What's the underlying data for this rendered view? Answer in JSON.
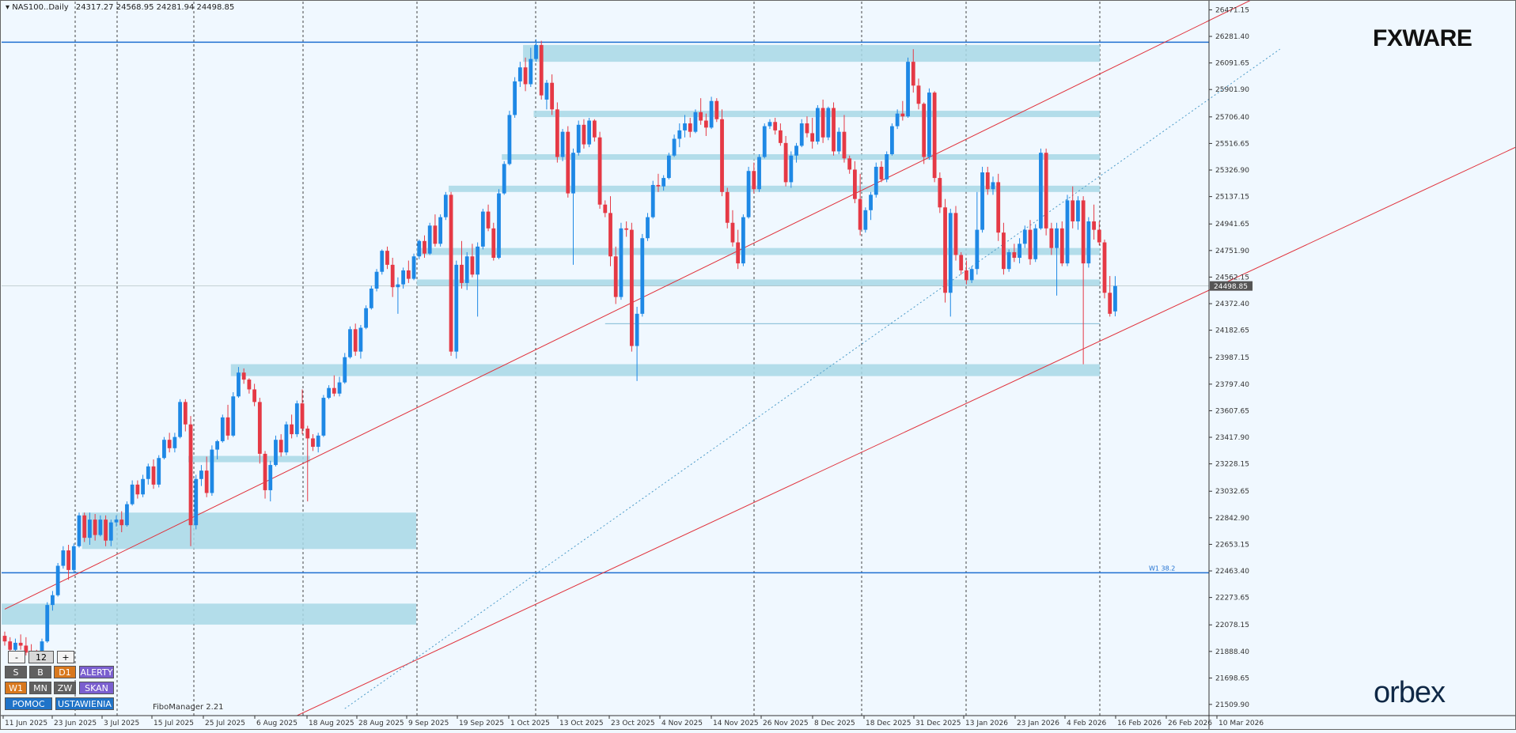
{
  "chart_data": {
    "type": "candlestick",
    "symbol": "NAS100..Daily",
    "ohlc_header": "24317.27 24568.95 24281.94 24498.85",
    "last_price": "24498.85",
    "ylim": [
      21430,
      26530
    ],
    "y_ticks": [
      "26471.15",
      "26281.40",
      "26091.65",
      "25901.90",
      "25706.40",
      "25516.65",
      "25326.90",
      "25137.15",
      "24941.65",
      "24751.90",
      "24562.15",
      "24372.40",
      "24182.65",
      "23987.15",
      "23797.40",
      "23607.65",
      "23417.90",
      "23228.15",
      "23032.65",
      "22842.90",
      "22653.15",
      "22463.40",
      "22273.65",
      "22078.15",
      "21888.40",
      "21698.65",
      "21509.90"
    ],
    "x_labels": [
      "11 Jun 2025",
      "23 Jun 2025",
      "3 Jul 2025",
      "15 Jul 2025",
      "25 Jul 2025",
      "6 Aug 2025",
      "18 Aug 2025",
      "28 Aug 2025",
      "9 Sep 2025",
      "19 Sep 2025",
      "1 Oct 2025",
      "13 Oct 2025",
      "23 Oct 2025",
      "4 Nov 2025",
      "14 Nov 2025",
      "26 Nov 2025",
      "8 Dec 2025",
      "18 Dec 2025",
      "31 Dec 2025",
      "13 Jan 2026",
      "23 Jan 2026",
      "4 Feb 2026",
      "16 Feb 2026",
      "26 Feb 2026",
      "10 Mar 2026"
    ],
    "level_label": "W1 38.2",
    "horizontal_lines": [
      26240,
      22450
    ],
    "supply_demand_zones": [
      {
        "x_start": "26 Oct 2025",
        "x_end": "end",
        "y_low": 26100,
        "y_high": 26220
      },
      {
        "x_start": "28 Oct 2025",
        "x_end": "end",
        "y_low": 25705,
        "y_high": 25750
      },
      {
        "x_start": "23 Oct 2025",
        "x_end": "end",
        "y_low": 25400,
        "y_high": 25440
      },
      {
        "x_start": "6 Oct 2025",
        "x_end": "end",
        "y_low": 25170,
        "y_high": 25215
      },
      {
        "x_start": "24 Sep 2025",
        "x_end": "end",
        "y_low": 24720,
        "y_high": 24770
      },
      {
        "x_start": "24 Sep 2025",
        "x_end": "end",
        "y_low": 24500,
        "y_high": 24545
      },
      {
        "x_start": "6 Aug 2025",
        "x_end": "end",
        "y_low": 23855,
        "y_high": 23940
      },
      {
        "x_start": "26 Jul 2025",
        "x_end": "1 Sep 2025",
        "y_low": 23240,
        "y_high": 23285
      },
      {
        "x_start": "30 Jun 2025",
        "x_end": "29 Sep 2025",
        "y_low": 22620,
        "y_high": 22880
      },
      {
        "x_start": "11 Jun 2025",
        "x_end": "29 Sep 2025",
        "y_low": 22080,
        "y_high": 22230
      }
    ],
    "trend_channel": {
      "upper": [
        {
          "x": 0,
          "y": 22190
        },
        {
          "x": 255,
          "y": 26920
        }
      ],
      "lower": [
        {
          "x": 55,
          "y": 21430
        },
        {
          "x": 355,
          "y": 26740
        }
      ],
      "dotted": [
        {
          "x": 64,
          "y": 21480
        },
        {
          "x": 240,
          "y": 26190
        }
      ]
    },
    "candles": [
      [
        22000,
        22030,
        21930,
        21960
      ],
      [
        21960,
        21990,
        21880,
        21900
      ],
      [
        21900,
        21980,
        21860,
        21950
      ],
      [
        21950,
        22010,
        21900,
        21930
      ],
      [
        21930,
        21990,
        21860,
        21880
      ],
      [
        21880,
        21940,
        21840,
        21860
      ],
      [
        21860,
        21900,
        21810,
        21830
      ],
      [
        21830,
        21980,
        21820,
        21960
      ],
      [
        21960,
        22240,
        21950,
        22220
      ],
      [
        22220,
        22320,
        22180,
        22290
      ],
      [
        22290,
        22520,
        22280,
        22500
      ],
      [
        22500,
        22640,
        22480,
        22610
      ],
      [
        22610,
        22650,
        22400,
        22470
      ],
      [
        22470,
        22660,
        22450,
        22640
      ],
      [
        22640,
        22880,
        22630,
        22860
      ],
      [
        22860,
        22880,
        22670,
        22700
      ],
      [
        22700,
        22880,
        22650,
        22830
      ],
      [
        22830,
        22870,
        22680,
        22720
      ],
      [
        22720,
        22860,
        22710,
        22830
      ],
      [
        22830,
        22860,
        22640,
        22680
      ],
      [
        22680,
        22830,
        22640,
        22810
      ],
      [
        22810,
        22860,
        22780,
        22830
      ],
      [
        22830,
        22890,
        22740,
        22790
      ],
      [
        22790,
        22960,
        22780,
        22940
      ],
      [
        22940,
        23110,
        22930,
        23080
      ],
      [
        23080,
        23110,
        22980,
        23010
      ],
      [
        23010,
        23150,
        22990,
        23120
      ],
      [
        23120,
        23230,
        23080,
        23210
      ],
      [
        23210,
        23260,
        23050,
        23080
      ],
      [
        23080,
        23290,
        23060,
        23270
      ],
      [
        23270,
        23420,
        23260,
        23400
      ],
      [
        23400,
        23450,
        23310,
        23340
      ],
      [
        23340,
        23450,
        23310,
        23420
      ],
      [
        23420,
        23690,
        23410,
        23670
      ],
      [
        23670,
        23690,
        23460,
        23510
      ],
      [
        23510,
        23570,
        22640,
        22790
      ],
      [
        22790,
        23150,
        22760,
        23120
      ],
      [
        23120,
        23220,
        23070,
        23180
      ],
      [
        23180,
        23280,
        22990,
        23020
      ],
      [
        23020,
        23360,
        23000,
        23330
      ],
      [
        23330,
        23400,
        23260,
        23390
      ],
      [
        23390,
        23580,
        23380,
        23560
      ],
      [
        23560,
        23650,
        23400,
        23430
      ],
      [
        23430,
        23740,
        23420,
        23710
      ],
      [
        23710,
        23920,
        23700,
        23880
      ],
      [
        23880,
        23910,
        23800,
        23830
      ],
      [
        23830,
        23840,
        23730,
        23760
      ],
      [
        23760,
        23800,
        23640,
        23670
      ],
      [
        23670,
        23700,
        23230,
        23300
      ],
      [
        23300,
        23320,
        22980,
        23040
      ],
      [
        23040,
        23250,
        22960,
        23220
      ],
      [
        23220,
        23430,
        23210,
        23400
      ],
      [
        23400,
        23440,
        23280,
        23310
      ],
      [
        23310,
        23530,
        23290,
        23510
      ],
      [
        23510,
        23580,
        23410,
        23440
      ],
      [
        23440,
        23680,
        23420,
        23660
      ],
      [
        23660,
        23760,
        23440,
        23480
      ],
      [
        23480,
        23500,
        22960,
        23410
      ],
      [
        23410,
        23440,
        23320,
        23350
      ],
      [
        23350,
        23450,
        23310,
        23430
      ],
      [
        23430,
        23720,
        23420,
        23700
      ],
      [
        23700,
        23790,
        23690,
        23770
      ],
      [
        23770,
        23860,
        23710,
        23730
      ],
      [
        23730,
        23850,
        23710,
        23810
      ],
      [
        23810,
        24020,
        23800,
        23990
      ],
      [
        23990,
        24210,
        23980,
        24190
      ],
      [
        24190,
        24230,
        24000,
        24030
      ],
      [
        24030,
        24220,
        23980,
        24200
      ],
      [
        24200,
        24360,
        24190,
        24340
      ],
      [
        24340,
        24500,
        24330,
        24480
      ],
      [
        24480,
        24620,
        24460,
        24600
      ],
      [
        24600,
        24760,
        24580,
        24750
      ],
      [
        24750,
        24780,
        24620,
        24650
      ],
      [
        24650,
        24700,
        24420,
        24490
      ],
      [
        24490,
        24560,
        24300,
        24510
      ],
      [
        24510,
        24630,
        24480,
        24610
      ],
      [
        24610,
        24680,
        24520,
        24550
      ],
      [
        24550,
        24730,
        24540,
        24710
      ],
      [
        24710,
        24830,
        24690,
        24820
      ],
      [
        24820,
        24860,
        24700,
        24730
      ],
      [
        24730,
        24950,
        24720,
        24930
      ],
      [
        24930,
        25010,
        24780,
        24800
      ],
      [
        24800,
        25010,
        24780,
        24990
      ],
      [
        24990,
        25170,
        24970,
        25150
      ],
      [
        25150,
        25170,
        24000,
        24030
      ],
      [
        24030,
        24680,
        23980,
        24650
      ],
      [
        24650,
        24820,
        24480,
        24520
      ],
      [
        24520,
        24740,
        24470,
        24710
      ],
      [
        24710,
        24800,
        24560,
        24580
      ],
      [
        24580,
        24810,
        24280,
        24780
      ],
      [
        24780,
        25050,
        24760,
        25030
      ],
      [
        25030,
        25080,
        24890,
        24910
      ],
      [
        24910,
        24950,
        24680,
        24700
      ],
      [
        24700,
        25190,
        24690,
        25160
      ],
      [
        25160,
        25390,
        25150,
        25370
      ],
      [
        25370,
        25750,
        25360,
        25720
      ],
      [
        25720,
        25990,
        25700,
        25960
      ],
      [
        25960,
        26100,
        25920,
        26060
      ],
      [
        26060,
        26130,
        25890,
        25940
      ],
      [
        25940,
        26200,
        25920,
        26120
      ],
      [
        26120,
        26260,
        26100,
        26220
      ],
      [
        26220,
        26250,
        25830,
        25860
      ],
      [
        25830,
        25970,
        25760,
        25950
      ],
      [
        25950,
        26010,
        25720,
        25760
      ],
      [
        25760,
        25810,
        25380,
        25420
      ],
      [
        25420,
        25620,
        25390,
        25600
      ],
      [
        25600,
        25640,
        25130,
        25160
      ],
      [
        25160,
        25480,
        24650,
        25450
      ],
      [
        25450,
        25680,
        25430,
        25650
      ],
      [
        25650,
        25690,
        25480,
        25510
      ],
      [
        25510,
        25700,
        25490,
        25680
      ],
      [
        25680,
        25690,
        25530,
        25560
      ],
      [
        25560,
        25600,
        25050,
        25080
      ],
      [
        25080,
        25110,
        24990,
        25020
      ],
      [
        25020,
        25140,
        24640,
        24710
      ],
      [
        24710,
        24780,
        24370,
        24420
      ],
      [
        24420,
        24950,
        24400,
        24910
      ],
      [
        24910,
        24960,
        24850,
        24900
      ],
      [
        24900,
        24950,
        24030,
        24070
      ],
      [
        24070,
        24350,
        23820,
        24300
      ],
      [
        24300,
        24870,
        24280,
        24840
      ],
      [
        24840,
        25020,
        24820,
        24990
      ],
      [
        24990,
        25250,
        24980,
        25220
      ],
      [
        25220,
        25300,
        25170,
        25210
      ],
      [
        25210,
        25290,
        25180,
        25270
      ],
      [
        25270,
        25450,
        25260,
        25430
      ],
      [
        25430,
        25580,
        25420,
        25550
      ],
      [
        25550,
        25660,
        25490,
        25610
      ],
      [
        25610,
        25720,
        25560,
        25660
      ],
      [
        25660,
        25700,
        25560,
        25600
      ],
      [
        25600,
        25760,
        25590,
        25740
      ],
      [
        25740,
        25840,
        25650,
        25680
      ],
      [
        25680,
        25730,
        25570,
        25630
      ],
      [
        25630,
        25850,
        25620,
        25820
      ],
      [
        25820,
        25840,
        25670,
        25690
      ],
      [
        25690,
        25760,
        25140,
        25170
      ],
      [
        25170,
        25200,
        24910,
        24950
      ],
      [
        24950,
        25040,
        24780,
        24810
      ],
      [
        24810,
        24900,
        24620,
        24660
      ],
      [
        24660,
        25010,
        24640,
        24990
      ],
      [
        24990,
        25350,
        24980,
        25320
      ],
      [
        25320,
        25380,
        25160,
        25190
      ],
      [
        25190,
        25440,
        25170,
        25420
      ],
      [
        25420,
        25660,
        25410,
        25640
      ],
      [
        25640,
        25690,
        25620,
        25670
      ],
      [
        25670,
        25700,
        25580,
        25610
      ],
      [
        25610,
        25660,
        25500,
        25520
      ],
      [
        25520,
        25570,
        25210,
        25240
      ],
      [
        25240,
        25460,
        25200,
        25430
      ],
      [
        25430,
        25520,
        25380,
        25500
      ],
      [
        25500,
        25690,
        25490,
        25660
      ],
      [
        25660,
        25710,
        25560,
        25590
      ],
      [
        25590,
        25700,
        25480,
        25530
      ],
      [
        25530,
        25790,
        25510,
        25770
      ],
      [
        25770,
        25830,
        25520,
        25560
      ],
      [
        25560,
        25780,
        25540,
        25770
      ],
      [
        25770,
        25810,
        25430,
        25460
      ],
      [
        25460,
        25630,
        25440,
        25600
      ],
      [
        25600,
        25720,
        25380,
        25410
      ],
      [
        25410,
        25430,
        25300,
        25330
      ],
      [
        25330,
        25390,
        25090,
        25120
      ],
      [
        25120,
        25300,
        24860,
        24900
      ],
      [
        24900,
        25060,
        24880,
        25040
      ],
      [
        25040,
        25170,
        24970,
        25150
      ],
      [
        25150,
        25380,
        25130,
        25350
      ],
      [
        25350,
        25390,
        25240,
        25260
      ],
      [
        25260,
        25460,
        25240,
        25440
      ],
      [
        25440,
        25660,
        25430,
        25640
      ],
      [
        25640,
        25760,
        25620,
        25730
      ],
      [
        25730,
        25820,
        25680,
        25710
      ],
      [
        25710,
        26130,
        25700,
        26100
      ],
      [
        26100,
        26190,
        25880,
        25930
      ],
      [
        25930,
        25980,
        25760,
        25800
      ],
      [
        25800,
        25810,
        25370,
        25420
      ],
      [
        25420,
        25910,
        25400,
        25880
      ],
      [
        25880,
        25890,
        25240,
        25270
      ],
      [
        25270,
        25310,
        25020,
        25060
      ],
      [
        25060,
        25120,
        24380,
        24450
      ],
      [
        24450,
        25050,
        24280,
        25020
      ],
      [
        25020,
        25070,
        24680,
        24720
      ],
      [
        24720,
        24740,
        24580,
        24610
      ],
      [
        24610,
        24680,
        24510,
        24540
      ],
      [
        24540,
        24640,
        24520,
        24620
      ],
      [
        24620,
        25170,
        24580,
        24900
      ],
      [
        24900,
        25350,
        24880,
        25310
      ],
      [
        25310,
        25350,
        25150,
        25190
      ],
      [
        25190,
        25280,
        25150,
        25240
      ],
      [
        25240,
        25300,
        24820,
        24880
      ],
      [
        24880,
        24950,
        24580,
        24620
      ],
      [
        24620,
        24760,
        24600,
        24740
      ],
      [
        24740,
        24800,
        24670,
        24700
      ],
      [
        24700,
        24840,
        24660,
        24800
      ],
      [
        24800,
        24930,
        24770,
        24900
      ],
      [
        24900,
        24970,
        24650,
        24690
      ],
      [
        24690,
        24940,
        24670,
        24910
      ],
      [
        24910,
        25480,
        24900,
        25450
      ],
      [
        25450,
        25480,
        24860,
        24910
      ],
      [
        24910,
        24950,
        24720,
        24770
      ],
      [
        24770,
        24950,
        24430,
        24910
      ],
      [
        24910,
        24960,
        24640,
        24660
      ],
      [
        24660,
        25150,
        24640,
        25110
      ],
      [
        25110,
        25210,
        24910,
        24960
      ],
      [
        24960,
        25140,
        24900,
        25110
      ],
      [
        25110,
        25140,
        23940,
        24660
      ],
      [
        24660,
        24990,
        24630,
        24960
      ],
      [
        24960,
        25080,
        24830,
        24900
      ],
      [
        24900,
        24960,
        24790,
        24810
      ],
      [
        24810,
        24830,
        24410,
        24450
      ],
      [
        24450,
        24570,
        24280,
        24300
      ],
      [
        24317.27,
        24568.95,
        24281.94,
        24498.85
      ]
    ]
  },
  "title_text": "NAS100..Daily",
  "ohlc_text": "24317.27 24568.95 24281.94 24498.85",
  "fibo_manager": "FiboManager 2.21",
  "logo_fxware": "FXWARE",
  "logo_orbex": "orbex",
  "panel": {
    "minus": "-",
    "value": "12",
    "plus": "+",
    "s": "S",
    "b": "B",
    "d1": "D1",
    "alerty": "ALERTY",
    "w1": "W1",
    "mn": "MN",
    "zw": "ZW",
    "skan": "SKAN",
    "pomoc": "POMOC",
    "ustawienia": "USTAWIENIA"
  },
  "colors": {
    "background": "#f0f8ff",
    "bull": "#1e88e5",
    "bear": "#e53945",
    "zone": "#a8d8e6",
    "channel": "#e0303a",
    "hline": "#1e6fd0"
  }
}
